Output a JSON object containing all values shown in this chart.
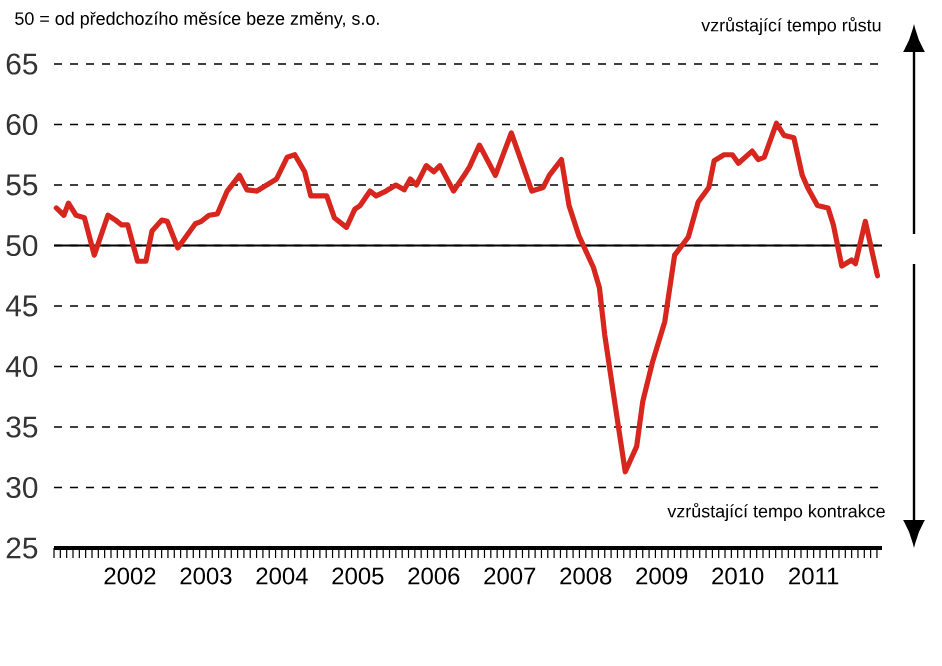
{
  "chart_data": {
    "type": "line",
    "title": "50 = od předchozího měsíce beze změny, s.o.",
    "annotations": [
      "vzrůstající tempo růstu",
      "vzrůstající tempo kontrakce"
    ],
    "x": [
      2001.53,
      2001.63,
      2001.69,
      2001.79,
      2001.9,
      2002.03,
      2002.21,
      2002.31,
      2002.39,
      2002.47,
      2002.6,
      2002.71,
      2002.79,
      2002.92,
      2002.99,
      2003.13,
      2003.36,
      2003.44,
      2003.54,
      2003.65,
      2003.78,
      2003.94,
      2004.04,
      2004.17,
      2004.3,
      2004.43,
      2004.57,
      2004.67,
      2004.8,
      2004.88,
      2005.09,
      2005.19,
      2005.35,
      2005.46,
      2005.53,
      2005.66,
      2005.74,
      2005.87,
      2006.0,
      2006.11,
      2006.19,
      2006.27,
      2006.4,
      2006.5,
      2006.58,
      2006.76,
      2006.9,
      2006.97,
      2007.1,
      2007.31,
      2007.52,
      2007.65,
      2007.79,
      2007.94,
      2008.02,
      2008.18,
      2008.28,
      2008.41,
      2008.6,
      2008.68,
      2008.75,
      2008.88,
      2009.02,
      2009.17,
      2009.25,
      2009.38,
      2009.54,
      2009.67,
      2009.85,
      2009.98,
      2010.12,
      2010.19,
      2010.32,
      2010.43,
      2010.51,
      2010.69,
      2010.77,
      2010.85,
      2011.01,
      2011.11,
      2011.24,
      2011.35,
      2011.42,
      2011.55,
      2011.69,
      2011.76,
      2011.87,
      2012.0,
      2012.05,
      2012.18,
      2012.34
    ],
    "series": [
      {
        "color": "#d7261e",
        "values": [
          53.1,
          52.5,
          53.5,
          52.5,
          52.3,
          49.2,
          52.5,
          52.1,
          51.7,
          51.7,
          48.7,
          48.7,
          51.2,
          52.1,
          52.0,
          49.8,
          51.8,
          52.0,
          52.5,
          52.6,
          54.5,
          55.8,
          54.6,
          54.5,
          55.0,
          55.5,
          57.3,
          57.5,
          56.1,
          54.1,
          54.1,
          52.3,
          51.5,
          53.0,
          53.3,
          54.5,
          54.1,
          54.5,
          55.0,
          54.6,
          55.5,
          55.0,
          56.6,
          56.1,
          56.6,
          54.5,
          55.8,
          56.5,
          58.3,
          55.8,
          59.3,
          57.0,
          54.5,
          54.8,
          55.8,
          57.1,
          53.3,
          50.8,
          48.2,
          46.5,
          42.6,
          37.1,
          31.3,
          33.4,
          37.1,
          40.4,
          43.7,
          49.2,
          50.7,
          53.6,
          54.8,
          57.0,
          57.5,
          57.5,
          56.8,
          57.8,
          57.1,
          57.3,
          60.1,
          59.1,
          58.9,
          55.8,
          54.8,
          53.3,
          53.1,
          51.7,
          48.3,
          48.8,
          48.5,
          52.0,
          47.5
        ]
      }
    ],
    "xlim": [
      2001.5,
      2012.4
    ],
    "xticks": [
      {
        "value": 2002,
        "label": null
      },
      {
        "value": 2002.5,
        "label": "2002"
      },
      {
        "value": 2003,
        "label": null
      },
      {
        "value": 2003.5,
        "label": "2003"
      },
      {
        "value": 2004,
        "label": null
      },
      {
        "value": 2004.5,
        "label": "2004"
      },
      {
        "value": 2005,
        "label": null
      },
      {
        "value": 2005.5,
        "label": "2005"
      },
      {
        "value": 2006,
        "label": null
      },
      {
        "value": 2006.5,
        "label": "2006"
      },
      {
        "value": 2007,
        "label": null
      },
      {
        "value": 2007.5,
        "label": "2007"
      },
      {
        "value": 2008,
        "label": null
      },
      {
        "value": 2008.5,
        "label": "2008"
      },
      {
        "value": 2009,
        "label": null
      },
      {
        "value": 2009.5,
        "label": "2009"
      },
      {
        "value": 2010,
        "label": null
      },
      {
        "value": 2010.5,
        "label": "2010"
      },
      {
        "value": 2011,
        "label": null
      },
      {
        "value": 2011.5,
        "label": "2011"
      },
      {
        "value": 2012,
        "label": null
      }
    ],
    "ylim": [
      25,
      65
    ],
    "yticks": [
      25,
      30,
      35,
      40,
      45,
      50,
      55,
      60,
      65
    ],
    "grid": "y",
    "ref_lines": [
      {
        "axis": "y",
        "value": 50,
        "color": "#000000"
      }
    ]
  }
}
